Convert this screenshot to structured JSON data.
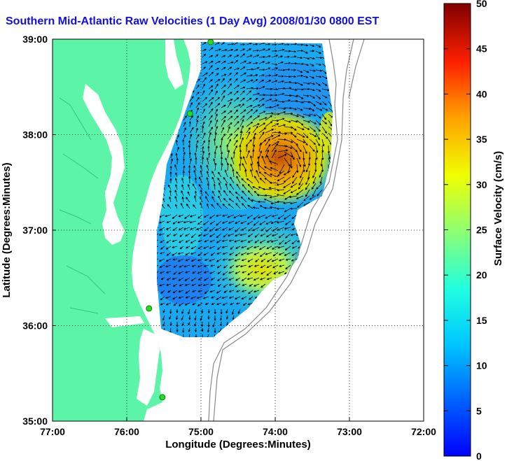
{
  "title": "Southern Mid-Atlantic Raw Velocities (1 Day Avg) 2008/01/30 0800 EST",
  "map": {
    "xlabel": "Longitude (Degrees:Minutes)",
    "ylabel": "Latitude (Degrees:Minutes)",
    "x_ticks": [
      "77:00",
      "76:00",
      "75:00",
      "74:00",
      "73:00",
      "72:00"
    ],
    "y_ticks": [
      "39:00",
      "38:00",
      "37:00",
      "36:00",
      "35:00"
    ],
    "lon_range": [
      -77,
      -72
    ],
    "lat_range": [
      35,
      39
    ],
    "land_color": "#5cf5a8",
    "ocean_color": "#ffffff",
    "station_color": "#22dd22",
    "stations": [
      {
        "lon": -74.87,
        "lat": 38.97
      },
      {
        "lon": -75.15,
        "lat": 38.22
      },
      {
        "lon": -75.7,
        "lat": 36.18
      },
      {
        "lon": -75.52,
        "lat": 35.25
      }
    ]
  },
  "colorbar": {
    "label": "Surface Velocity (cm/s)",
    "ticks": [
      "0",
      "5",
      "10",
      "15",
      "20",
      "25",
      "30",
      "35",
      "40",
      "45",
      "50"
    ],
    "min": 0,
    "max": 50,
    "colormap": "jet"
  }
}
